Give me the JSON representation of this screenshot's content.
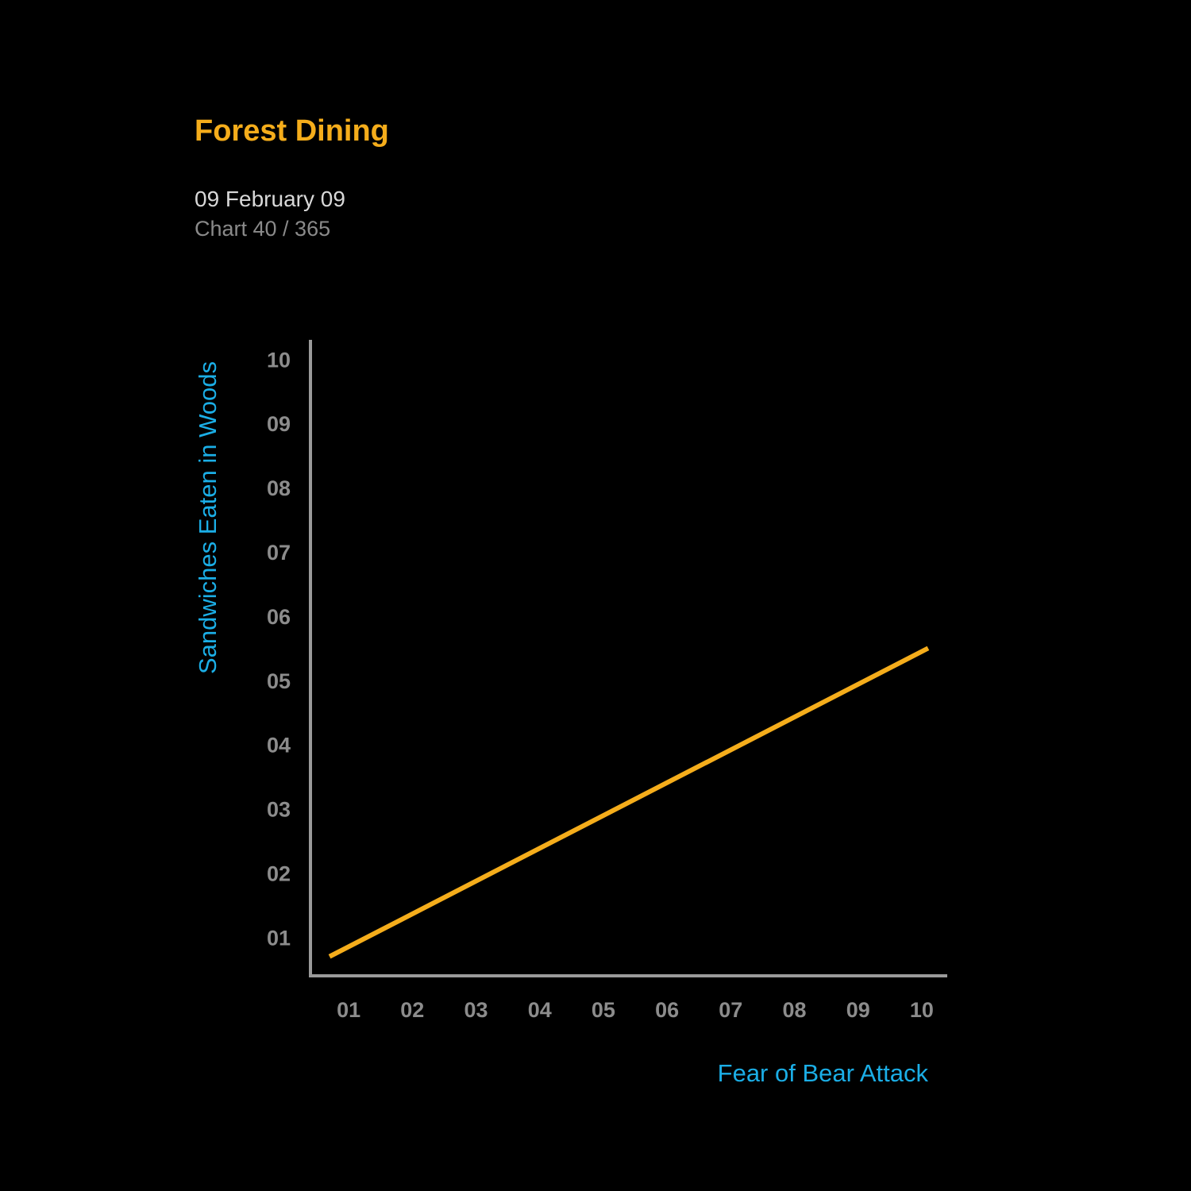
{
  "header": {
    "title": "Forest Dining",
    "date": "09 February 09",
    "counter": "Chart 40 / 365"
  },
  "colors": {
    "background": "#000000",
    "title": "#F5AD1B",
    "line": "#F5AD1B",
    "axis": "#9A9A9A",
    "axis_title": "#1BAEE6",
    "tick": "#8C8C8C"
  },
  "chart_data": {
    "type": "line",
    "title": "Forest Dining",
    "xlabel": "Fear of Bear Attack",
    "ylabel": "Sandwiches Eaten in Woods",
    "x_ticks": [
      "01",
      "02",
      "03",
      "04",
      "05",
      "06",
      "07",
      "08",
      "09",
      "10"
    ],
    "y_ticks": [
      "01",
      "02",
      "03",
      "04",
      "05",
      "06",
      "07",
      "08",
      "09",
      "10"
    ],
    "xlim": [
      0.4,
      10.4
    ],
    "ylim": [
      0.4,
      10.3
    ],
    "grid": false,
    "legend": "none",
    "series": [
      {
        "x": [
          0.7,
          10.1
        ],
        "y": [
          0.7,
          5.5
        ]
      }
    ]
  }
}
